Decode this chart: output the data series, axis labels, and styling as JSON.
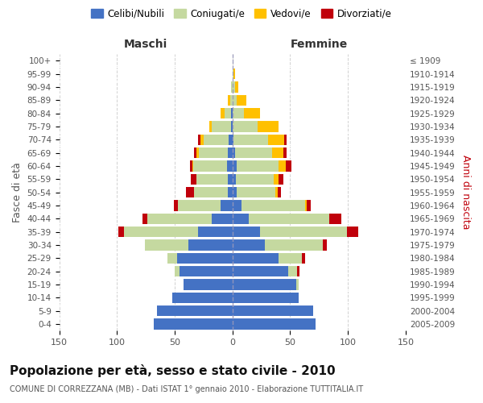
{
  "age_groups": [
    "0-4",
    "5-9",
    "10-14",
    "15-19",
    "20-24",
    "25-29",
    "30-34",
    "35-39",
    "40-44",
    "45-49",
    "50-54",
    "55-59",
    "60-64",
    "65-69",
    "70-74",
    "75-79",
    "80-84",
    "85-89",
    "90-94",
    "95-99",
    "100+"
  ],
  "birth_years": [
    "2005-2009",
    "2000-2004",
    "1995-1999",
    "1990-1994",
    "1985-1989",
    "1980-1984",
    "1975-1979",
    "1970-1974",
    "1965-1969",
    "1960-1964",
    "1955-1959",
    "1950-1954",
    "1945-1949",
    "1940-1944",
    "1935-1939",
    "1930-1934",
    "1925-1929",
    "1920-1924",
    "1915-1919",
    "1910-1914",
    "≤ 1909"
  ],
  "male": {
    "celibi": [
      68,
      65,
      52,
      42,
      46,
      48,
      38,
      30,
      18,
      10,
      4,
      4,
      5,
      4,
      3,
      1,
      1,
      0,
      0,
      0,
      0
    ],
    "coniugati": [
      0,
      0,
      0,
      0,
      4,
      8,
      38,
      64,
      56,
      37,
      29,
      27,
      29,
      25,
      22,
      17,
      6,
      2,
      1,
      0,
      0
    ],
    "vedovi": [
      0,
      0,
      0,
      0,
      0,
      0,
      0,
      0,
      0,
      0,
      0,
      0,
      1,
      2,
      3,
      2,
      3,
      2,
      0,
      0,
      0
    ],
    "divorziati": [
      0,
      0,
      0,
      0,
      0,
      0,
      0,
      5,
      4,
      4,
      7,
      5,
      2,
      2,
      2,
      0,
      0,
      0,
      0,
      0,
      0
    ]
  },
  "female": {
    "nubili": [
      72,
      70,
      57,
      55,
      48,
      40,
      28,
      24,
      14,
      8,
      4,
      3,
      4,
      2,
      1,
      0,
      0,
      0,
      0,
      0,
      0
    ],
    "coniugate": [
      0,
      0,
      0,
      2,
      8,
      20,
      50,
      75,
      70,
      55,
      33,
      33,
      36,
      32,
      30,
      22,
      10,
      4,
      2,
      1,
      0
    ],
    "vedove": [
      0,
      0,
      0,
      0,
      0,
      0,
      0,
      0,
      0,
      1,
      2,
      4,
      6,
      10,
      14,
      18,
      14,
      8,
      3,
      1,
      0
    ],
    "divorziate": [
      0,
      0,
      0,
      0,
      2,
      3,
      4,
      10,
      10,
      4,
      3,
      4,
      5,
      3,
      2,
      0,
      0,
      0,
      0,
      0,
      0
    ]
  },
  "color_celibi": "#4472c4",
  "color_coniugati": "#c5d9a0",
  "color_vedovi": "#ffc000",
  "color_divorziati": "#c0000b",
  "title": "Popolazione per età, sesso e stato civile - 2010",
  "subtitle": "COMUNE DI CORREZZANA (MB) - Dati ISTAT 1° gennaio 2010 - Elaborazione TUTTITALIA.IT",
  "xlabel_left": "Maschi",
  "xlabel_right": "Femmine",
  "ylabel_left": "Fasce di età",
  "ylabel_right": "Anni di nascita",
  "xlim": 150,
  "legend_labels": [
    "Celibi/Nubili",
    "Coniugati/e",
    "Vedovi/e",
    "Divorziati/e"
  ],
  "bg_color": "#ffffff",
  "grid_color": "#cccccc"
}
